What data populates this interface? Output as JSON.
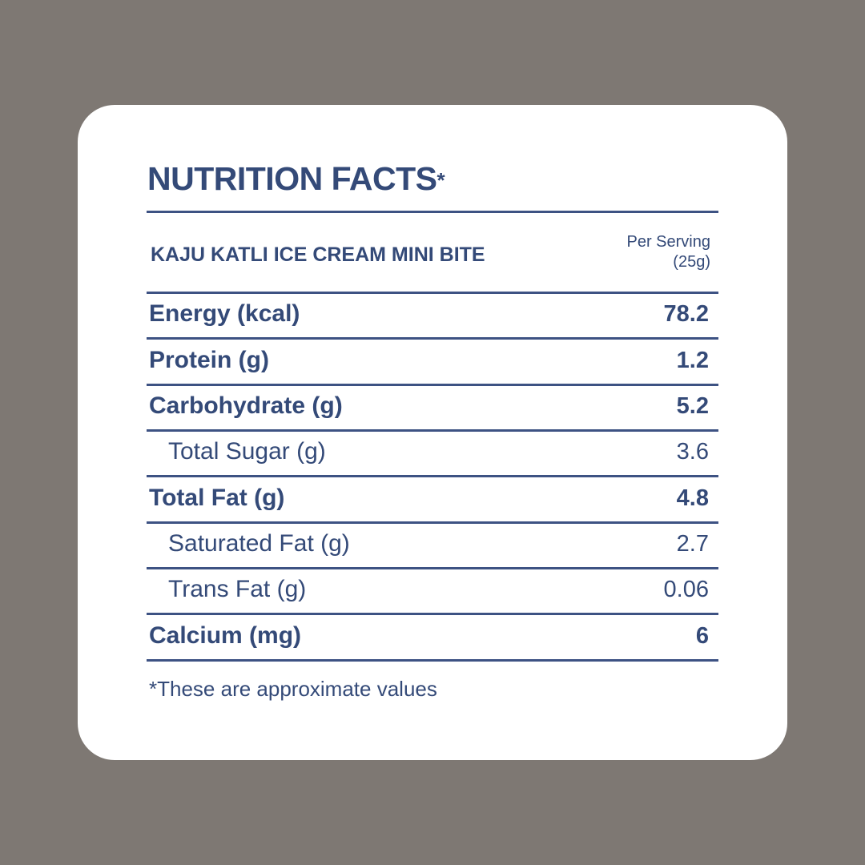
{
  "panel": {
    "title": "NUTRITION FACTS",
    "title_mark": "*",
    "product": "KAJU KATLI ICE CREAM MINI BITE",
    "serving_line1": "Per Serving",
    "serving_line2": "(25g)",
    "footnote": "*These are approximate values"
  },
  "nutrients": [
    {
      "label": "Energy (kcal)",
      "value": "78.2",
      "level": "main"
    },
    {
      "label": "Protein (g)",
      "value": "1.2",
      "level": "main"
    },
    {
      "label": "Carbohydrate (g)",
      "value": "5.2",
      "level": "main"
    },
    {
      "label": "Total Sugar (g)",
      "value": "3.6",
      "level": "sub"
    },
    {
      "label": "Total Fat (g)",
      "value": "4.8",
      "level": "main"
    },
    {
      "label": "Saturated Fat (g)",
      "value": "2.7",
      "level": "sub"
    },
    {
      "label": "Trans Fat (g)",
      "value": "0.06",
      "level": "sub"
    },
    {
      "label": "Calcium (mg)",
      "value": "6",
      "level": "main"
    }
  ],
  "colors": {
    "background": "#7e7873",
    "card": "#ffffff",
    "text": "#344a78",
    "rule": "#3d5283"
  }
}
